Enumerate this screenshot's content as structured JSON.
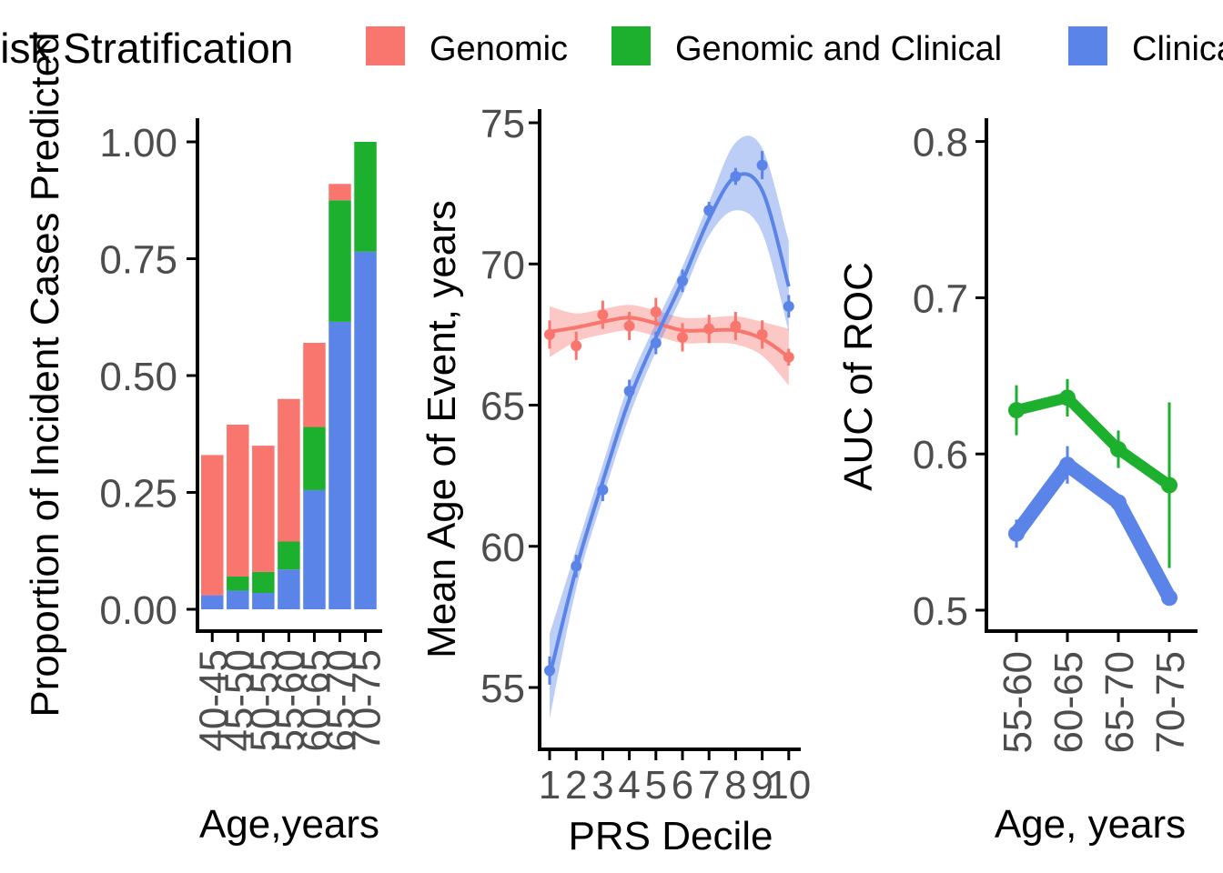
{
  "legend": {
    "title": "Risk Stratification",
    "entries": [
      {
        "label": "Genomic",
        "color": "#F8766D"
      },
      {
        "label": "Genomic and Clinical",
        "color": "#1DB02E"
      },
      {
        "label": "Clinical",
        "color": "#5B84E8"
      }
    ]
  },
  "chart_data": [
    {
      "type": "bar",
      "stacked": true,
      "xlabel": "Age,years",
      "ylabel": "Proportion of Incident Cases Predicted",
      "ylim": [
        0,
        1.05
      ],
      "yticks": [
        "0.00",
        "0.25",
        "0.50",
        "0.75",
        "1.00"
      ],
      "categories": [
        "40-45",
        "45-50",
        "50-55",
        "55-60",
        "60-65",
        "65-70",
        "70-75"
      ],
      "series": [
        {
          "name": "Clinical",
          "color": "#5B84E8",
          "values": [
            0.03,
            0.04,
            0.035,
            0.085,
            0.255,
            0.615,
            0.765
          ]
        },
        {
          "name": "Genomic and Clinical",
          "color": "#1DB02E",
          "values": [
            0.0,
            0.03,
            0.045,
            0.06,
            0.135,
            0.26,
            0.235
          ]
        },
        {
          "name": "Genomic",
          "color": "#F8766D",
          "values": [
            0.3,
            0.325,
            0.27,
            0.305,
            0.18,
            0.035,
            0.0
          ]
        }
      ]
    },
    {
      "type": "line",
      "xlabel": "PRS Decile",
      "ylabel": "Mean Age of Event, years",
      "ylim": [
        53,
        75.5
      ],
      "yticks": [
        "55",
        "60",
        "65",
        "70",
        "75"
      ],
      "x": [
        "1",
        "2",
        "3",
        "4",
        "5",
        "6",
        "7",
        "8",
        "9",
        "10"
      ],
      "series": [
        {
          "name": "Genomic",
          "color": "#F8766D",
          "points": [
            67.5,
            67.1,
            68.2,
            67.8,
            68.3,
            67.4,
            67.7,
            67.8,
            67.5,
            66.7
          ],
          "errors": [
            0.5,
            0.5,
            0.5,
            0.5,
            0.5,
            0.5,
            0.5,
            0.5,
            0.5,
            0.3
          ],
          "smooth": [
            67.6,
            67.75,
            67.95,
            68.1,
            67.9,
            67.65,
            67.65,
            67.65,
            67.35,
            66.7
          ],
          "band": [
            0.9,
            0.5,
            0.45,
            0.45,
            0.45,
            0.45,
            0.45,
            0.5,
            0.6,
            1.0
          ]
        },
        {
          "name": "Clinical",
          "color": "#5B84E8",
          "points": [
            55.6,
            59.3,
            62.0,
            65.5,
            67.2,
            69.4,
            71.9,
            73.1,
            73.5,
            68.5
          ],
          "errors": [
            0.5,
            0.4,
            0.4,
            0.4,
            0.4,
            0.4,
            0.3,
            0.3,
            0.5,
            0.4
          ],
          "smooth": [
            55.4,
            59.2,
            62.3,
            65.2,
            67.4,
            69.4,
            71.6,
            73.1,
            72.6,
            69.2
          ],
          "band": [
            1.5,
            0.7,
            0.6,
            0.6,
            0.5,
            0.5,
            0.6,
            1.2,
            1.5,
            1.6
          ]
        }
      ]
    },
    {
      "type": "line",
      "xlabel": "Age, years",
      "ylabel": "AUC of ROC",
      "ylim": [
        0.485,
        0.815
      ],
      "yticks": [
        "0.5",
        "0.6",
        "0.7",
        "0.8"
      ],
      "categories": [
        "55-60",
        "60-65",
        "65-70",
        "70-75"
      ],
      "series": [
        {
          "name": "Genomic and Clinical",
          "color": "#1DB02E",
          "values": [
            0.628,
            0.636,
            0.603,
            0.58
          ],
          "errors": [
            0.016,
            0.012,
            0.012,
            0.053
          ]
        },
        {
          "name": "Clinical",
          "color": "#5B84E8",
          "values": [
            0.549,
            0.593,
            0.569,
            0.508
          ],
          "errors": [
            0.009,
            0.012,
            0.004,
            0.004
          ]
        }
      ]
    }
  ]
}
